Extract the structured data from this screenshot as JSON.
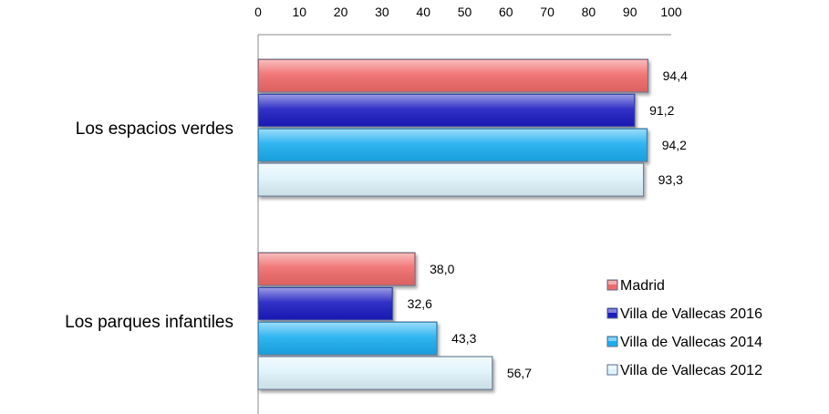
{
  "chart_data": {
    "type": "bar",
    "orientation": "horizontal",
    "categories": [
      "Los espacios verdes",
      "Los parques infantiles"
    ],
    "series": [
      {
        "name": "Madrid",
        "values": [
          94.4,
          38.0
        ],
        "labels": [
          "94,4",
          "38,0"
        ],
        "color": "#f06a6a"
      },
      {
        "name": "Villa de Vallecas  2016",
        "values": [
          91.2,
          32.6
        ],
        "labels": [
          "91,2",
          "32,6"
        ],
        "color": "#1c1cc2"
      },
      {
        "name": "Villa de Vallecas  2014",
        "values": [
          94.2,
          43.3
        ],
        "labels": [
          "94,2",
          "43,3"
        ],
        "color": "#1aaef0"
      },
      {
        "name": "Villa de Vallecas  2012",
        "values": [
          93.3,
          56.7
        ],
        "labels": [
          "93,3",
          "56,7"
        ],
        "color": "#def3fb"
      }
    ],
    "xlim": [
      0,
      100
    ],
    "xticks": [
      0,
      10,
      20,
      30,
      40,
      50,
      60,
      70,
      80,
      90,
      100
    ],
    "x_axis_position": "top",
    "grid": false,
    "legend_position": "bottom-right",
    "title": "",
    "xlabel": "",
    "ylabel": ""
  }
}
